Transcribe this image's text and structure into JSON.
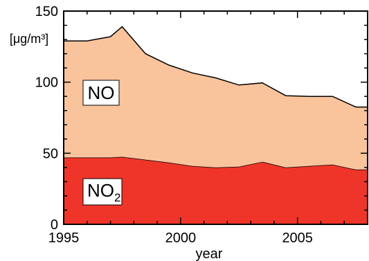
{
  "chart_data": {
    "type": "area",
    "stacked": true,
    "x": [
      1995,
      1996,
      1997,
      1997.5,
      1998.5,
      1999.5,
      2000.5,
      2001.5,
      2002.5,
      2003.5,
      2004.5,
      2005.5,
      2006.5,
      2007.5,
      2008
    ],
    "series": [
      {
        "name": "NO2",
        "label_main": "NO",
        "label_sub": "2",
        "values": [
          47,
          47,
          47,
          47.5,
          45.5,
          43.5,
          41,
          40,
          40.5,
          44,
          40,
          41,
          42,
          38.5,
          38.5
        ],
        "color": "#ef3529"
      },
      {
        "name": "NO",
        "label_main": "NO",
        "values": [
          82,
          82,
          85,
          91.5,
          74.5,
          68.5,
          65.5,
          63,
          57.5,
          55.5,
          50.5,
          49,
          48,
          44,
          44
        ],
        "color": "#f9c39c"
      }
    ],
    "totals": [
      129,
      129,
      132,
      139,
      120,
      112,
      106.5,
      103,
      98,
      99.5,
      90.5,
      90,
      90,
      82.5,
      82.5
    ],
    "xlabel": "year",
    "ylabel": "[μg/m³]",
    "xlim": [
      1995,
      2008
    ],
    "ylim": [
      0,
      150
    ],
    "xticks": [
      1995,
      2000,
      2005
    ],
    "yticks": [
      0,
      50,
      100,
      150
    ],
    "grid": false,
    "legend": "none"
  }
}
